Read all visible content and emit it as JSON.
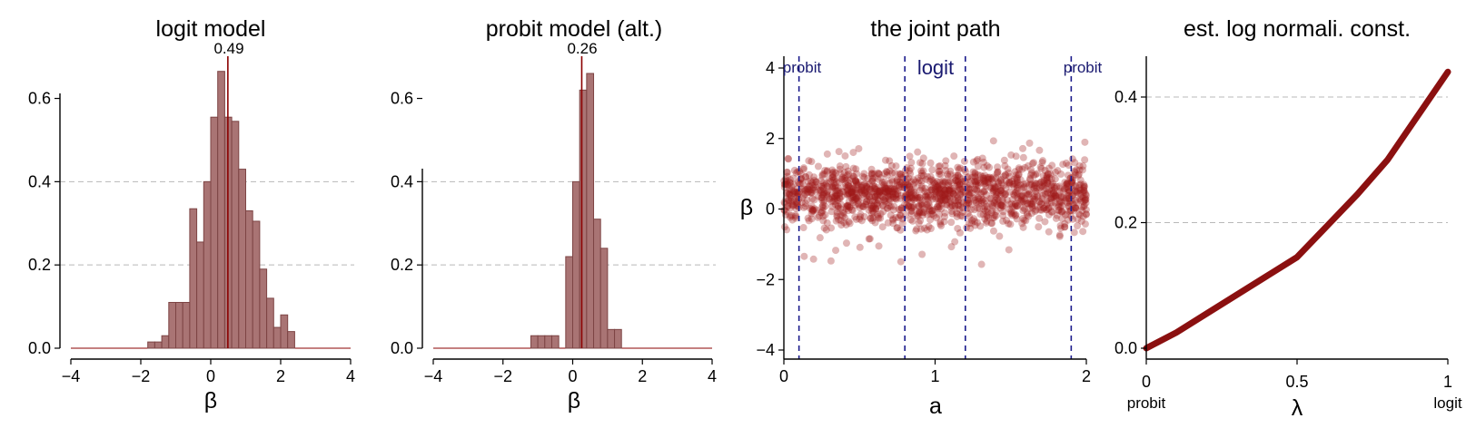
{
  "chart_data": [
    {
      "type": "bar",
      "title": "logit model",
      "xlabel": "β",
      "ylabel": "",
      "xlim": [
        -4,
        4
      ],
      "ylim": [
        0,
        0.66
      ],
      "xticks": [
        "−4",
        "−2",
        "0",
        "2",
        "4"
      ],
      "yticks": [
        "0.0",
        "0.2",
        "0.4",
        "0.6"
      ],
      "grid_y": [
        0.2,
        0.4
      ],
      "median_value": 0.49,
      "median_label": "0.49",
      "bin_width": 0.2,
      "bin_starts": [
        -1.8,
        -1.6,
        -1.4,
        -1.2,
        -1.0,
        -0.8,
        -0.6,
        -0.4,
        -0.2,
        0.0,
        0.2,
        0.4,
        0.6,
        0.8,
        1.0,
        1.2,
        1.4,
        1.6,
        1.8,
        2.0,
        2.2,
        2.4
      ],
      "values": [
        0.015,
        0.015,
        0.03,
        0.11,
        0.11,
        0.11,
        0.335,
        0.255,
        0.4,
        0.555,
        0.665,
        0.555,
        0.545,
        0.43,
        0.33,
        0.305,
        0.19,
        0.12,
        0.05,
        0.08,
        0.04,
        0.0
      ]
    },
    {
      "type": "bar",
      "title": "probit model (alt.)",
      "xlabel": "β",
      "ylabel": "",
      "xlim": [
        -4,
        4
      ],
      "ylim": [
        0,
        0.66
      ],
      "xticks": [
        "−4",
        "−2",
        "0",
        "2",
        "4"
      ],
      "yticks": [
        "0.0",
        "0.2",
        "0.4",
        "0.6"
      ],
      "grid_y": [
        0.2,
        0.4
      ],
      "median_value": 0.26,
      "median_label": "0.26",
      "bin_width": 0.2,
      "bin_starts": [
        -1.2,
        -1.0,
        -0.8,
        -0.6,
        -0.4,
        -0.2,
        0.0,
        0.2,
        0.4,
        0.6,
        0.8,
        1.0,
        1.2
      ],
      "values": [
        0.03,
        0.03,
        0.03,
        0.03,
        0.0,
        0.22,
        0.4,
        0.62,
        0.66,
        0.31,
        0.24,
        0.045,
        0.045
      ]
    },
    {
      "type": "scatter",
      "title": "the joint path",
      "xlabel": "a",
      "ylabel": "β",
      "xlim": [
        0,
        2
      ],
      "ylim": [
        -4.3,
        4.3
      ],
      "xticks": [
        "0",
        "1",
        "2"
      ],
      "yticks": [
        "−4",
        "−2",
        "0",
        "2",
        "4"
      ],
      "region_boundaries": [
        0.1,
        0.8,
        1.2,
        1.9
      ],
      "region_labels": [
        "probit",
        "logit",
        "probit"
      ],
      "n_points": 1500,
      "beta_mean": 0.4,
      "beta_sd": 0.45
    },
    {
      "type": "line",
      "title": "est. log normali. const.",
      "xlabel": "λ",
      "ylabel": "",
      "xlim": [
        0,
        1
      ],
      "ylim": [
        -0.02,
        0.47
      ],
      "xticks": [
        "0",
        "0.5",
        "1"
      ],
      "yticks": [
        "0.0",
        "0.2",
        "0.4"
      ],
      "grid_y": [
        0.2,
        0.4
      ],
      "x_end_labels": [
        "probit",
        "logit"
      ],
      "x": [
        0.0,
        0.1,
        0.2,
        0.3,
        0.4,
        0.5,
        0.6,
        0.7,
        0.8,
        0.9,
        1.0
      ],
      "y": [
        0.0,
        0.025,
        0.055,
        0.085,
        0.115,
        0.145,
        0.195,
        0.245,
        0.3,
        0.37,
        0.44
      ]
    }
  ],
  "colors": {
    "bar_fill": "#a97474",
    "bar_edge": "#7d4444",
    "accent": "#8b0000",
    "boundary": "#1c1c8c",
    "grid": "#b8b8b8"
  }
}
